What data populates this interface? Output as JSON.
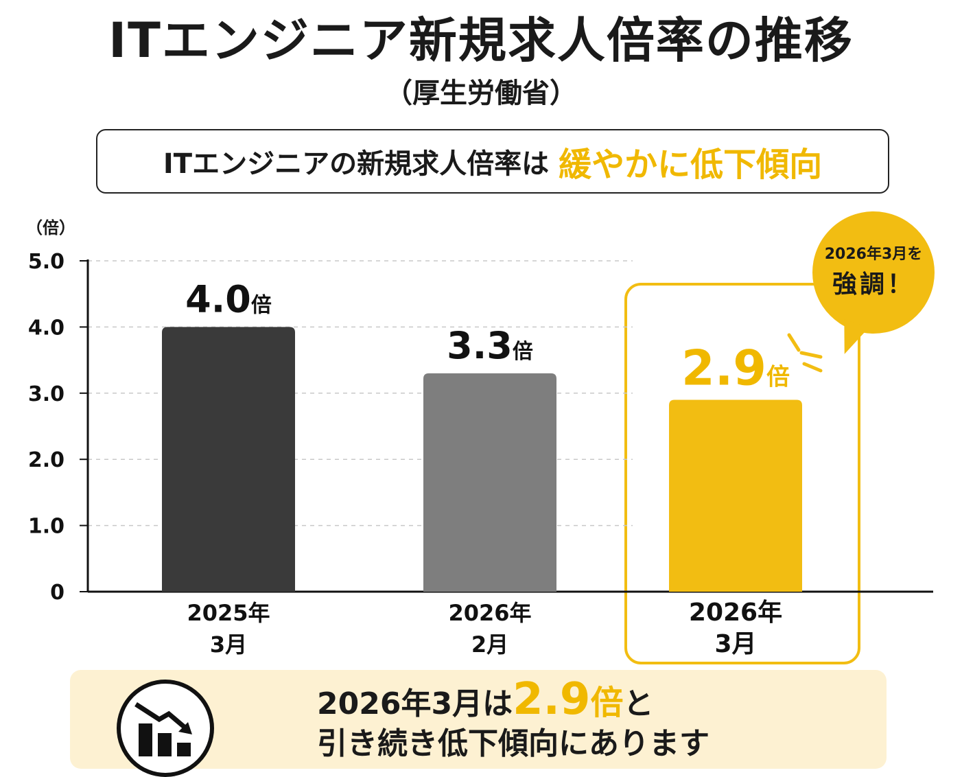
{
  "header": {
    "title": "ITエンジニア新規求人倍率の推移",
    "subtitle": "（厚生労働省）"
  },
  "headline": {
    "prefix": "ITエンジニアの新規求人倍率は",
    "accent": "緩やかに低下傾向"
  },
  "callout": {
    "line1": "2026年3月を",
    "line2": "強調！"
  },
  "summary": {
    "line1_prefix": "2026年3月は",
    "line1_value": "2.9",
    "line1_unit": "倍",
    "line1_suffix": "と",
    "line2": "引き続き低下傾向にあります",
    "icon": "bar-chart-down-arrow-icon"
  },
  "colors": {
    "bar_dark": "#3a3a3a",
    "bar_gray": "#7e7e7e",
    "bar_highlight": "#f2bd12",
    "accent_text": "#f0b800",
    "summary_bg": "#fdf1d2"
  },
  "chart_data": {
    "type": "bar",
    "ylabel": "（倍）",
    "ylim": [
      0,
      5
    ],
    "yticks": [
      "0",
      "1.0",
      "2.0",
      "3.0",
      "4.0",
      "5.0"
    ],
    "categories": [
      [
        "2025年",
        "3月"
      ],
      [
        "2026年",
        "2月"
      ],
      [
        "2026年",
        "3月"
      ]
    ],
    "values": [
      4.0,
      3.3,
      2.9
    ],
    "value_labels": [
      "4.0",
      "3.3",
      "2.9"
    ],
    "value_unit": "倍",
    "highlight_index": 2,
    "grid": "dashed horizontal"
  }
}
